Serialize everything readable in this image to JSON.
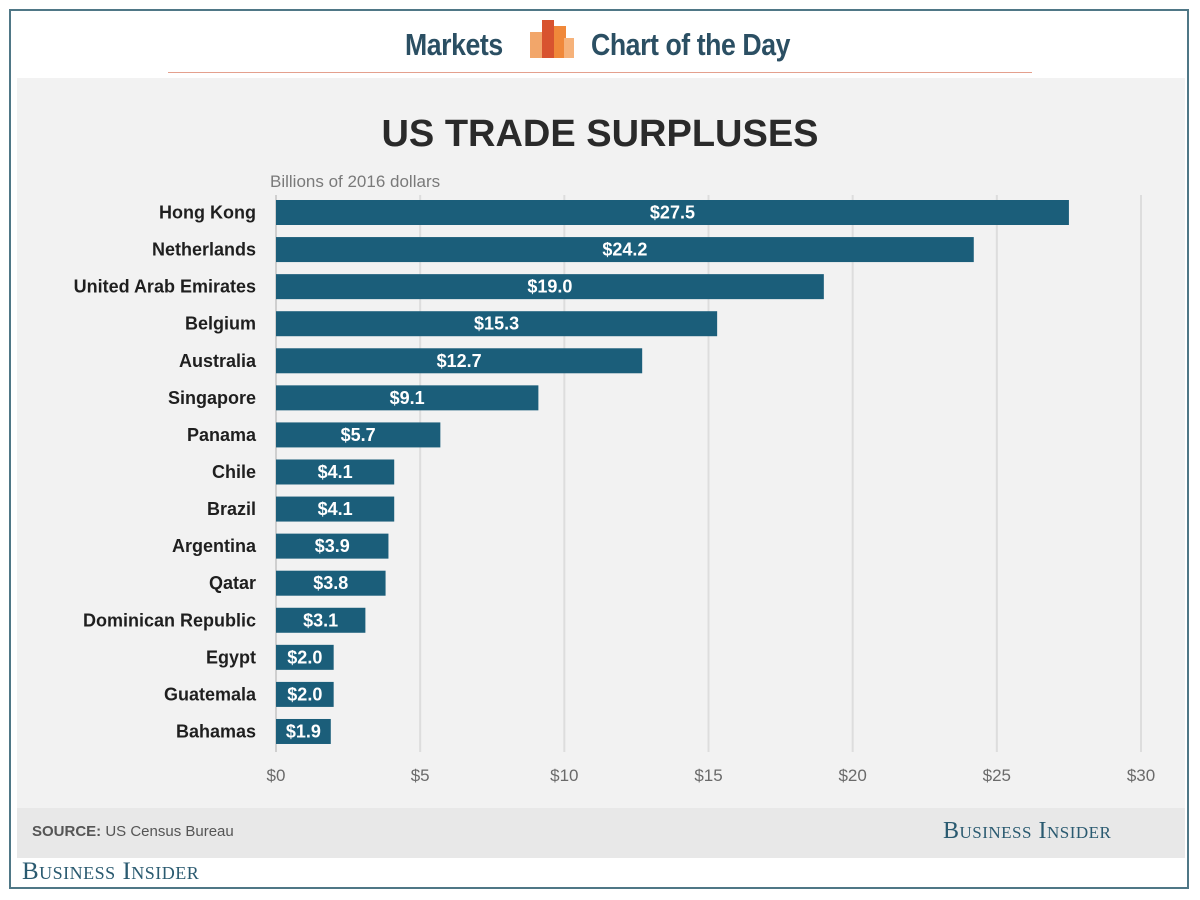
{
  "header": {
    "left_word": "Markets",
    "right_word": "Chart of the Day",
    "logo_icon": "bar-chart-logo-icon",
    "colors": {
      "text": "#2b4f63",
      "logo_orange": "#f0883a",
      "logo_red": "#d8532f",
      "rule": "#e4a08e"
    }
  },
  "footer": {
    "source_label": "SOURCE:",
    "source_text": "US Census Bureau",
    "brand_inner": "Business Insider",
    "brand_outer": "Business Insider"
  },
  "chart_data": {
    "type": "bar",
    "orientation": "horizontal",
    "title": "US TRADE SURPLUSES",
    "subtitle": "Billions of 2016 dollars",
    "categories": [
      "Hong Kong",
      "Netherlands",
      "United Arab Emirates",
      "Belgium",
      "Australia",
      "Singapore",
      "Panama",
      "Chile",
      "Brazil",
      "Argentina",
      "Qatar",
      "Dominican Republic",
      "Egypt",
      "Guatemala",
      "Bahamas"
    ],
    "values": [
      27.5,
      24.2,
      19.0,
      15.3,
      12.7,
      9.1,
      5.7,
      4.1,
      4.1,
      3.9,
      3.8,
      3.1,
      2.0,
      2.0,
      1.9
    ],
    "value_labels": [
      "$27.5",
      "$24.2",
      "$19.0",
      "$15.3",
      "$12.7",
      "$9.1",
      "$5.7",
      "$4.1",
      "$4.1",
      "$3.9",
      "$3.8",
      "$3.1",
      "$2.0",
      "$2.0",
      "$1.9"
    ],
    "x_ticks": [
      0,
      5,
      10,
      15,
      20,
      25,
      30
    ],
    "x_tick_labels": [
      "$0",
      "$5",
      "$10",
      "$15",
      "$20",
      "$25",
      "$30"
    ],
    "xlim": [
      0,
      30
    ],
    "grid": "vertical",
    "bar_color": "#1b5e7a",
    "grid_color": "#dddddd"
  }
}
